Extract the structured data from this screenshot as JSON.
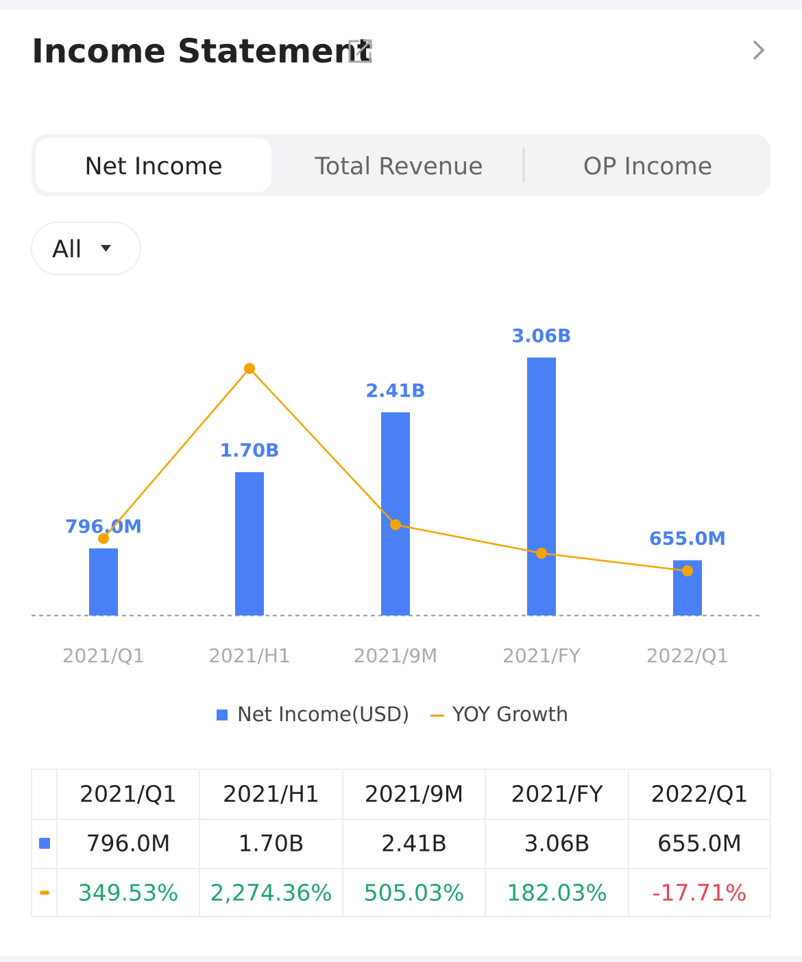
{
  "header": {
    "title": "Income Statement"
  },
  "tabs": [
    "Net Income",
    "Total Revenue",
    "OP Income"
  ],
  "filter": "All",
  "chart_data": {
    "type": "bar-line",
    "categories": [
      "2021/Q1",
      "2021/H1",
      "2021/9M",
      "2021/FY",
      "2022/Q1"
    ],
    "series": [
      {
        "name": "Net Income(USD)",
        "type": "bar",
        "color": "#4a80f5",
        "values": [
          796000000,
          1700000000,
          2410000000,
          3060000000,
          655000000
        ],
        "value_labels": [
          "796.0M",
          "1.70B",
          "2.41B",
          "3.06B",
          "655.0M"
        ]
      },
      {
        "name": "YOY Growth",
        "type": "line",
        "axis": "y2",
        "color": "#f5a300",
        "values": [
          349.53,
          2274.36,
          505.03,
          182.03,
          -17.71
        ],
        "value_labels": [
          "349.53%",
          "2,274.36%",
          "505.03%",
          "182.03%",
          "-17.71%"
        ]
      }
    ]
  }
}
